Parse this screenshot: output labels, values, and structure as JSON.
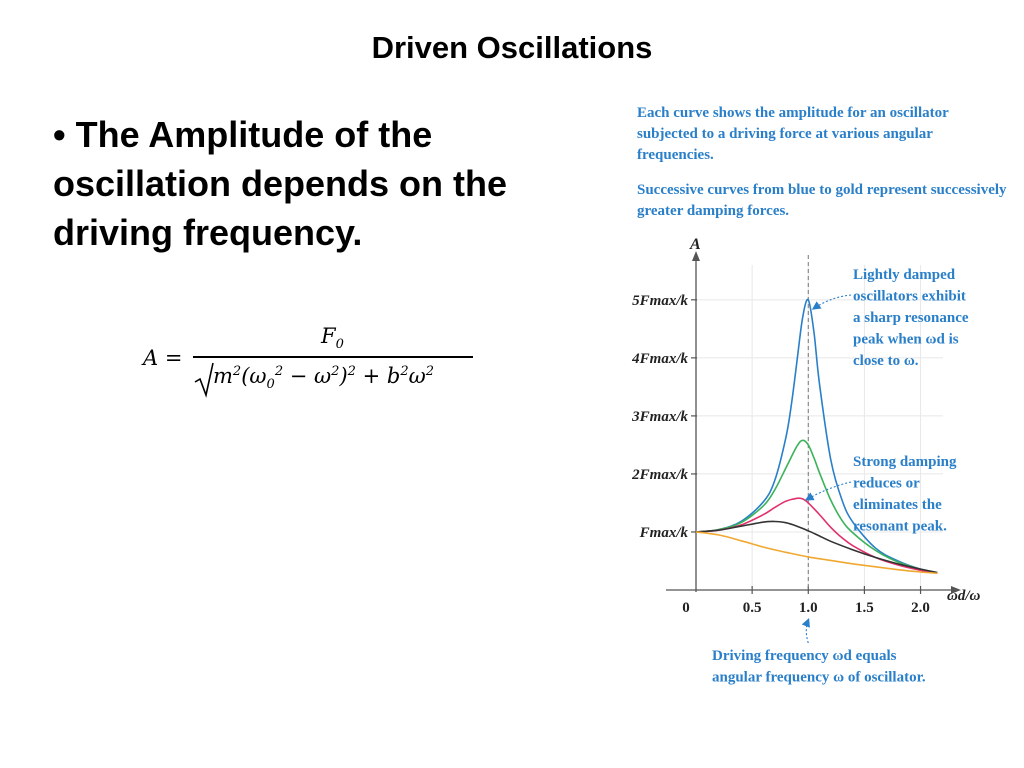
{
  "title": "Driven Oscillations",
  "bullet": "• The Amplitude of the oscillation depends on the driving frequency.",
  "formula": {
    "lhs": "A =",
    "numerator": "F0",
    "denominator": "m2(ω02 − ω2)2 + b2ω2"
  },
  "captions": {
    "top1": "Each curve shows the amplitude for an oscillator subjected to a driving force at various angular frequencies.",
    "top2": "Successive curves from blue to gold represent successively greater damping forces.",
    "light": [
      "Lightly damped",
      "oscillators exhibit",
      "a sharp resonance",
      "peak when ωd is",
      "close to ω."
    ],
    "strong": [
      "Strong damping",
      "reduces or",
      "eliminates the",
      "resonant peak."
    ],
    "bottom": [
      "Driving frequency ωd equals",
      "angular frequency ω of oscillator."
    ]
  },
  "colors": {
    "caption": "#2a7fc9",
    "axis": "#555555"
  },
  "chart_data": {
    "type": "line",
    "title": "",
    "xlabel": "ωd/ω",
    "ylabel": "A",
    "xlim": [
      0,
      2.2
    ],
    "ylim": [
      0,
      5.6
    ],
    "x_ticks": [
      "0",
      "0.5",
      "1.0",
      "1.5",
      "2.0"
    ],
    "x_tick_values": [
      0,
      0.5,
      1.0,
      1.5,
      2.0
    ],
    "y_ticks": [
      "Fmax/k",
      "2Fmax/k",
      "3Fmax/k",
      "4Fmax/k",
      "5Fmax/k"
    ],
    "y_tick_values": [
      1,
      2,
      3,
      4,
      5
    ],
    "resonance_line_x": 1.0,
    "series": [
      {
        "color": "#2a7fc9",
        "x": [
          0,
          0.2,
          0.4,
          0.6,
          0.7,
          0.8,
          0.85,
          0.9,
          0.95,
          1.0,
          1.05,
          1.1,
          1.2,
          1.3,
          1.4,
          1.6,
          1.8,
          2.0,
          2.15
        ],
        "values": [
          1.0,
          1.04,
          1.18,
          1.52,
          1.88,
          2.62,
          3.2,
          3.95,
          4.7,
          5.0,
          4.45,
          3.55,
          2.25,
          1.55,
          1.16,
          0.72,
          0.5,
          0.36,
          0.3
        ]
      },
      {
        "color": "#3bb35a",
        "x": [
          0,
          0.2,
          0.4,
          0.6,
          0.7,
          0.8,
          0.9,
          0.95,
          1.0,
          1.05,
          1.1,
          1.2,
          1.3,
          1.4,
          1.6,
          1.8,
          2.0,
          2.15
        ],
        "values": [
          1.0,
          1.04,
          1.16,
          1.45,
          1.72,
          2.1,
          2.48,
          2.58,
          2.5,
          2.28,
          2.02,
          1.55,
          1.2,
          0.98,
          0.68,
          0.48,
          0.36,
          0.3
        ]
      },
      {
        "color": "#e2306c",
        "x": [
          0,
          0.2,
          0.4,
          0.6,
          0.7,
          0.8,
          0.9,
          0.95,
          1.0,
          1.1,
          1.2,
          1.3,
          1.4,
          1.6,
          1.8,
          2.0,
          2.15
        ],
        "values": [
          1.0,
          1.03,
          1.12,
          1.3,
          1.42,
          1.53,
          1.58,
          1.57,
          1.5,
          1.3,
          1.08,
          0.9,
          0.76,
          0.56,
          0.43,
          0.34,
          0.29
        ]
      },
      {
        "color": "#333333",
        "x": [
          0,
          0.2,
          0.4,
          0.6,
          0.7,
          0.8,
          0.9,
          1.0,
          1.1,
          1.2,
          1.4,
          1.6,
          1.8,
          2.0,
          2.15
        ],
        "values": [
          1.0,
          1.03,
          1.1,
          1.17,
          1.18,
          1.16,
          1.1,
          1.02,
          0.93,
          0.84,
          0.69,
          0.56,
          0.45,
          0.36,
          0.3
        ]
      },
      {
        "color": "#f0a830",
        "x": [
          0,
          0.2,
          0.4,
          0.6,
          0.8,
          1.0,
          1.2,
          1.4,
          1.6,
          1.8,
          2.0,
          2.15
        ],
        "values": [
          1.0,
          0.95,
          0.85,
          0.74,
          0.65,
          0.57,
          0.51,
          0.45,
          0.4,
          0.35,
          0.31,
          0.29
        ]
      }
    ]
  }
}
